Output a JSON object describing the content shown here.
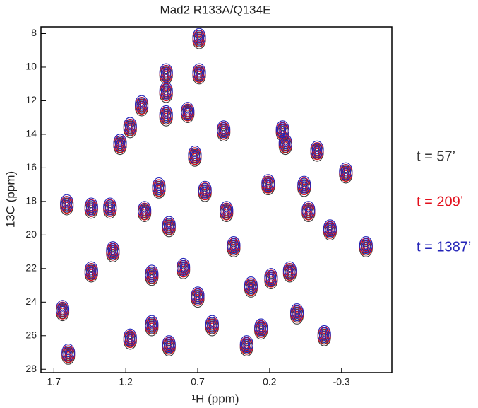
{
  "chart_data": {
    "type": "scatter",
    "title": "Mad2 R133A/Q134E",
    "x_label": "¹H (ppm)",
    "y_label": "13C (ppm)",
    "xlim": [
      1.79,
      -0.65
    ],
    "xticks": [
      1.7,
      1.2,
      0.7,
      0.2,
      -0.3
    ],
    "ylim": [
      28.2,
      7.6
    ],
    "yticks": [
      8,
      10,
      12,
      14,
      16,
      18,
      20,
      22,
      24,
      26,
      28
    ],
    "grid": false,
    "legend": "right",
    "x": [
      0.69,
      0.69,
      0.92,
      0.92,
      0.92,
      1.17,
      1.24,
      1.09,
      0.77,
      0.52,
      0.72,
      0.11,
      0.09,
      -0.13,
      -0.33,
      0.21,
      -0.04,
      1.61,
      1.44,
      1.31,
      1.07,
      0.97,
      0.65,
      0.9,
      0.5,
      -0.07,
      -0.22,
      -0.47,
      1.29,
      1.44,
      1.64,
      1.02,
      0.8,
      0.45,
      0.33,
      0.19,
      0.06,
      0.01,
      -0.18,
      0.26,
      0.7,
      0.6,
      1.02,
      1.17,
      1.6,
      0.9,
      0.36
    ],
    "series": [
      {
        "name": "t = 57’",
        "color": "#3a3a3a",
        "values": [
          8.4,
          10.5,
          10.5,
          11.6,
          13.0,
          13.7,
          14.7,
          12.4,
          12.8,
          13.9,
          15.4,
          13.9,
          14.7,
          15.1,
          16.4,
          17.1,
          17.2,
          18.3,
          18.5,
          18.5,
          18.7,
          17.3,
          17.5,
          19.6,
          18.7,
          18.7,
          19.8,
          20.8,
          21.1,
          22.3,
          24.6,
          22.5,
          22.1,
          20.8,
          23.2,
          22.7,
          22.3,
          24.8,
          26.1,
          25.7,
          23.8,
          25.5,
          25.5,
          26.3,
          27.2,
          26.7,
          26.7
        ]
      },
      {
        "name": "t = 209’",
        "color": "#e3101c",
        "values": [
          8.3,
          10.4,
          10.4,
          11.5,
          12.9,
          13.6,
          14.6,
          12.3,
          12.7,
          13.8,
          15.3,
          13.8,
          14.6,
          15.0,
          16.3,
          17.0,
          17.1,
          18.2,
          18.4,
          18.4,
          18.6,
          17.2,
          17.4,
          19.5,
          18.6,
          18.6,
          19.7,
          20.7,
          21.0,
          22.2,
          24.5,
          22.4,
          22.0,
          20.7,
          23.1,
          22.6,
          22.2,
          24.7,
          26.0,
          25.6,
          23.7,
          25.4,
          25.4,
          26.2,
          27.1,
          26.6,
          26.6
        ]
      },
      {
        "name": "t = 1387’",
        "color": "#2424b8",
        "values": [
          8.2,
          10.3,
          10.3,
          11.4,
          12.8,
          13.5,
          14.5,
          12.2,
          12.6,
          13.7,
          15.2,
          13.7,
          14.5,
          14.9,
          16.2,
          16.9,
          17.0,
          18.1,
          18.3,
          18.3,
          18.5,
          17.1,
          17.3,
          19.4,
          18.5,
          18.5,
          19.6,
          20.6,
          20.9,
          22.1,
          24.4,
          22.3,
          21.9,
          20.6,
          23.0,
          22.5,
          22.1,
          24.6,
          25.9,
          25.5,
          23.6,
          25.3,
          25.3,
          26.1,
          27.0,
          26.5,
          26.5
        ]
      }
    ]
  }
}
